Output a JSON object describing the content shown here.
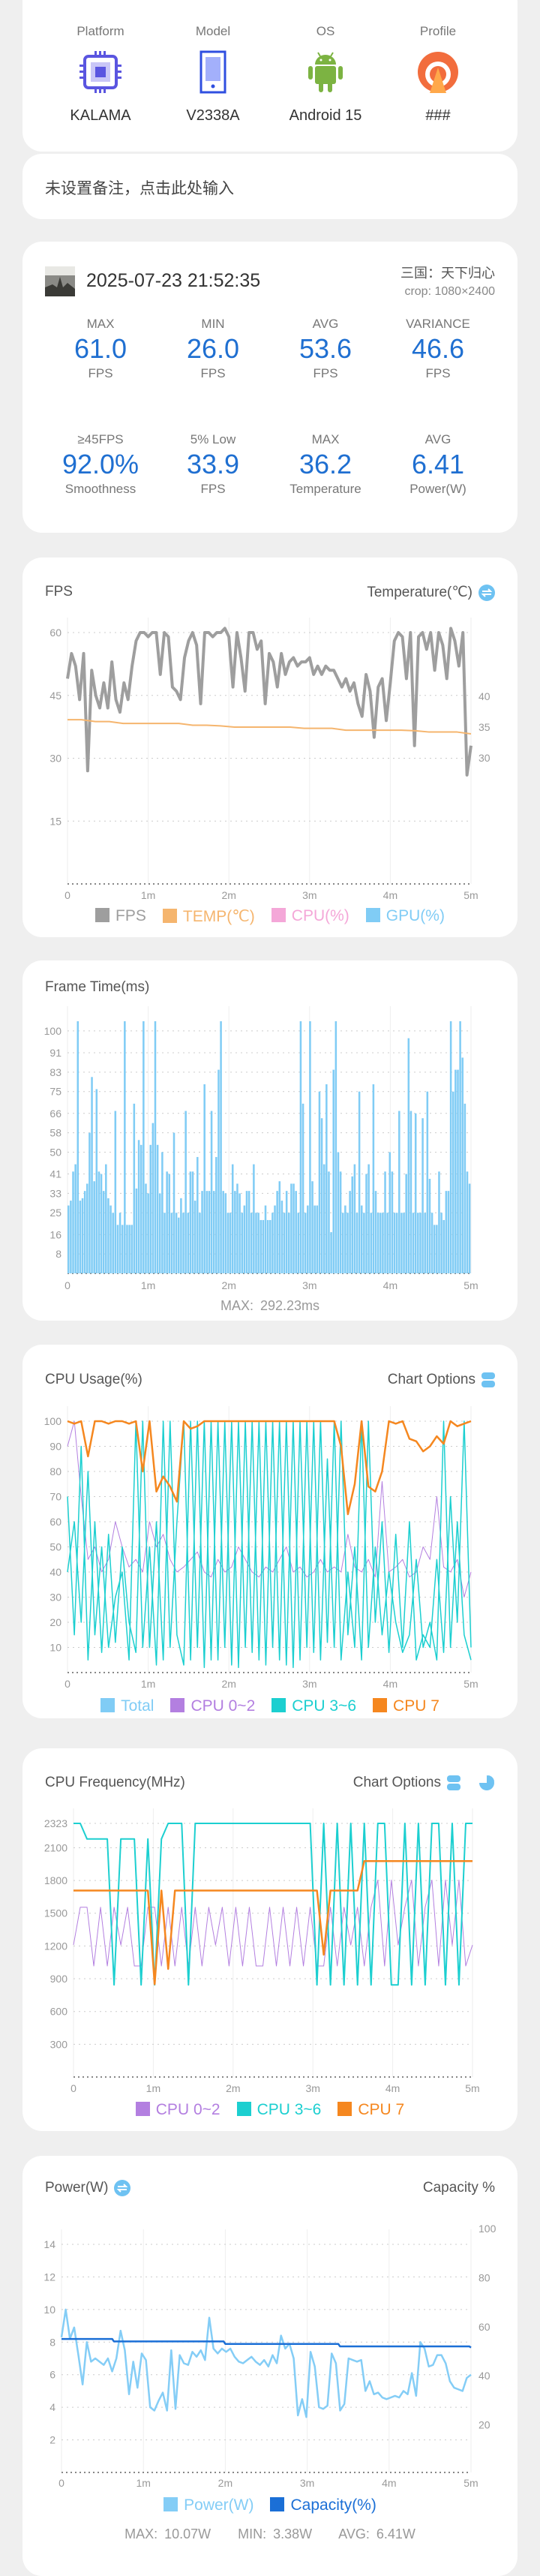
{
  "device": {
    "platform": {
      "label": "Platform",
      "value": "KALAMA",
      "icon": "chip-icon"
    },
    "model": {
      "label": "Model",
      "value": "V2338A",
      "icon": "phone-icon"
    },
    "os": {
      "label": "OS",
      "value": "Android 15",
      "icon": "android-icon"
    },
    "profile": {
      "label": "Profile",
      "value": "###",
      "icon": "profile-icon"
    }
  },
  "note": {
    "placeholder": "未设置备注，点击此处输入"
  },
  "summary": {
    "datetime": "2025-07-23 21:52:35",
    "game": "三国：天下归心",
    "crop": "crop: 1080×2400",
    "stats": [
      {
        "top": "MAX",
        "value": "61.0",
        "unit": "FPS"
      },
      {
        "top": "MIN",
        "value": "26.0",
        "unit": "FPS"
      },
      {
        "top": "AVG",
        "value": "53.6",
        "unit": "FPS"
      },
      {
        "top": "VARIANCE",
        "value": "46.6",
        "unit": "FPS"
      },
      {
        "top": "≥45FPS",
        "value": "92.0%",
        "unit": "Smoothness"
      },
      {
        "top": "5% Low",
        "value": "33.9",
        "unit": "FPS"
      },
      {
        "top": "MAX",
        "value": "36.2",
        "unit": "Temperature"
      },
      {
        "top": "AVG",
        "value": "6.41",
        "unit": "Power(W)"
      }
    ]
  },
  "colors": {
    "accent": "#1f6fd1",
    "fps": "#9e9e9e",
    "temp": "#f5b56e",
    "cpu": "#f4a7d8",
    "gpu": "#80ccf5",
    "purple": "#b37fe0",
    "cyan": "#1ccfd0",
    "orange": "#f5871f",
    "power": "#84cdf6",
    "capacity": "#1b6fd6"
  },
  "chart_data": [
    {
      "type": "line",
      "title": "FPS",
      "right_title": "Temperature(℃)",
      "xticks": [
        "0",
        "1m",
        "2m",
        "3m",
        "4m",
        "5m"
      ],
      "xlim": [
        0,
        5
      ],
      "yticks": [
        "60",
        "45",
        "30",
        "15"
      ],
      "ylim": [
        0,
        60
      ],
      "y2ticks": [
        "40",
        "35",
        "30"
      ],
      "y2lim": [
        30,
        40
      ],
      "legend": [
        "FPS",
        "TEMP(℃)",
        "CPU(%)",
        "GPU(%)"
      ],
      "series": [
        {
          "name": "FPS",
          "values": [
            49,
            55,
            52,
            44,
            55,
            27,
            51,
            45,
            42,
            48,
            42,
            53,
            44,
            41,
            48,
            44,
            52,
            58,
            60,
            60,
            59,
            60,
            60,
            50,
            60,
            59,
            47,
            46,
            44,
            54,
            58,
            60,
            57,
            43,
            60,
            60,
            59,
            60,
            60,
            61,
            59,
            47,
            60,
            54,
            46,
            60,
            60,
            56,
            58,
            43,
            55,
            53,
            47,
            55,
            50,
            53,
            54,
            52,
            53,
            53,
            54,
            50,
            52,
            50,
            52,
            51,
            51,
            49,
            47,
            49,
            46,
            48,
            43,
            40,
            50,
            46,
            35,
            47,
            49,
            39,
            48,
            58,
            60,
            59,
            49,
            60,
            33,
            59,
            60,
            56,
            60,
            51,
            60,
            57,
            49,
            61,
            58,
            52,
            60,
            26,
            33
          ]
        },
        {
          "name": "TEMP(℃)",
          "axis": "right",
          "values": [
            36.2,
            36.2,
            35.9,
            35.9,
            35.6,
            35.6,
            35.6,
            35.6,
            35.6,
            35.3,
            35.3,
            35.2,
            35.0,
            35.0,
            35.0,
            35.0,
            35.0,
            34.8,
            34.8,
            34.8,
            34.5,
            34.5,
            34.5,
            34.5,
            34.5,
            34.4,
            34.2,
            34.2,
            34.2,
            33.9
          ]
        }
      ]
    },
    {
      "type": "bar",
      "title": "Frame Time(ms)",
      "xticks": [
        "0",
        "1m",
        "2m",
        "3m",
        "4m",
        "5m"
      ],
      "xlim": [
        0,
        5
      ],
      "yticks": [
        "100",
        "91",
        "83",
        "75",
        "66",
        "58",
        "50",
        "41",
        "33",
        "25",
        "16",
        "8"
      ],
      "ylim": [
        0,
        104
      ],
      "footer": "MAX: 292.23ms",
      "values": [
        28,
        30,
        42,
        45,
        104,
        30,
        31,
        34,
        37,
        58,
        81,
        38,
        76,
        42,
        41,
        34,
        45,
        31,
        28,
        25,
        67,
        20,
        25,
        20,
        104,
        20,
        20,
        20,
        70,
        35,
        55,
        53,
        104,
        37,
        33,
        53,
        62,
        104,
        53,
        33,
        50,
        25,
        42,
        41,
        25,
        58,
        25,
        23,
        31,
        25,
        67,
        25,
        42,
        42,
        30,
        48,
        25,
        34,
        78,
        34,
        34,
        67,
        34,
        48,
        84,
        104,
        34,
        33,
        25,
        25,
        45,
        34,
        37,
        33,
        25,
        28,
        34,
        34,
        25,
        45,
        25,
        25,
        22,
        22,
        28,
        22,
        22,
        25,
        28,
        34,
        38,
        30,
        25,
        34,
        25,
        37,
        37,
        34,
        25,
        104,
        70,
        25,
        28,
        104,
        38,
        28,
        28,
        75,
        64,
        45,
        78,
        42,
        17,
        84,
        104,
        50,
        42,
        25,
        28,
        25,
        34,
        40,
        45,
        25,
        75,
        28,
        25,
        41,
        45,
        25,
        78,
        34,
        25,
        25,
        25,
        42,
        25,
        50,
        42,
        25,
        25,
        67,
        25,
        25,
        41,
        97,
        67,
        25,
        66,
        25,
        25,
        64,
        25,
        75,
        39,
        25,
        20,
        20,
        42,
        25,
        22,
        34,
        34,
        104,
        75,
        84,
        84,
        104,
        89,
        70,
        42,
        37
      ]
    },
    {
      "type": "line",
      "title": "CPU Usage(%)",
      "right_title": "Chart Options",
      "xticks": [
        "0",
        "1m",
        "2m",
        "3m",
        "4m",
        "5m"
      ],
      "xlim": [
        0,
        5
      ],
      "yticks": [
        "100",
        "90",
        "80",
        "70",
        "60",
        "50",
        "40",
        "30",
        "20",
        "10"
      ],
      "ylim": [
        0,
        100
      ],
      "legend": [
        "Total",
        "CPU 0~2",
        "CPU 3~6",
        "CPU 7"
      ],
      "series": [
        {
          "name": "CPU 0~2",
          "values": [
            90,
            100,
            70,
            45,
            50,
            40,
            45,
            60,
            50,
            42,
            45,
            40,
            60,
            50,
            55,
            45,
            40,
            42,
            45,
            48,
            40,
            38,
            45,
            40,
            42,
            50,
            45,
            40,
            38,
            42,
            40,
            45,
            50,
            40,
            42,
            38,
            40,
            45,
            40,
            42,
            40,
            55,
            42,
            40,
            45,
            38,
            76,
            40,
            42,
            45,
            38,
            40,
            50,
            45,
            70,
            42,
            40,
            45,
            30,
            40
          ]
        },
        {
          "name": "CPU 3~6",
          "values": [
            70,
            15,
            90,
            5,
            60,
            8,
            55,
            12,
            50,
            20,
            8,
            100,
            10,
            60,
            5,
            100,
            15,
            3,
            100,
            10,
            100,
            5,
            100,
            10,
            100,
            2,
            100,
            8,
            100,
            3,
            100,
            5,
            100,
            2,
            100,
            10,
            100,
            5,
            85,
            10,
            100,
            15,
            50,
            5,
            100,
            20,
            60,
            8,
            55,
            10,
            60,
            5,
            15,
            10,
            45,
            8,
            70,
            20,
            100,
            10
          ]
        },
        {
          "name": "CPU 3~6",
          "values": [
            40,
            60,
            20,
            80,
            15,
            50,
            10,
            30,
            40,
            5,
            100,
            10,
            50,
            3,
            100,
            10,
            60,
            100,
            5,
            100,
            2,
            100,
            5,
            100,
            3,
            100,
            10,
            100,
            5,
            100,
            10,
            100,
            3,
            100,
            5,
            100,
            8,
            100,
            12,
            100,
            5,
            40,
            10,
            100,
            10,
            50,
            15,
            40,
            20,
            8,
            15,
            45,
            10,
            20,
            5,
            100,
            10,
            60,
            15,
            5
          ]
        },
        {
          "name": "CPU 7",
          "values": [
            100,
            99,
            100,
            86,
            100,
            100,
            99,
            100,
            100,
            99,
            100,
            80,
            100,
            72,
            78,
            74,
            68,
            100,
            97,
            98,
            100,
            100,
            100,
            100,
            100,
            100,
            100,
            100,
            100,
            100,
            100,
            100,
            100,
            100,
            100,
            100,
            100,
            100,
            100,
            100,
            90,
            63,
            75,
            100,
            74,
            72,
            80,
            100,
            99,
            100,
            93,
            92,
            88,
            90,
            94,
            91,
            100,
            98,
            99,
            100
          ]
        }
      ]
    },
    {
      "type": "line",
      "title": "CPU Frequency(MHz)",
      "right_title": "Chart Options",
      "xticks": [
        "0",
        "1m",
        "2m",
        "3m",
        "4m",
        "5m"
      ],
      "xlim": [
        0,
        5
      ],
      "yticks": [
        "2323",
        "2100",
        "1800",
        "1500",
        "1200",
        "900",
        "600",
        "300"
      ],
      "ylim": [
        0,
        2323
      ],
      "legend": [
        "CPU 0~2",
        "CPU 3~6",
        "CPU 7"
      ],
      "series": [
        {
          "name": "CPU 0~2",
          "values": [
            1209,
            1555,
            1555,
            1017,
            1555,
            1017,
            1555,
            1209,
            1555,
            1017,
            1017,
            1555,
            1555,
            1017,
            1555,
            1017,
            1555,
            1017,
            1555,
            1017,
            1555,
            1209,
            1555,
            1017,
            1555,
            1017,
            1555,
            1017,
            1017,
            1555,
            1017,
            1555,
            1017,
            1555,
            1017,
            1555,
            1017,
            1017,
            1555,
            1017,
            1555,
            1209,
            1555,
            1017,
            1555,
            1804,
            1017,
            1804,
            1209,
            1555,
            1804,
            1017,
            1555,
            1804,
            1017,
            1804,
            1209,
            1804,
            1017,
            1209
          ]
        },
        {
          "name": "CPU 3~6",
          "values": [
            2323,
            2323,
            2180,
            2180,
            2180,
            2180,
            844,
            2180,
            2180,
            2180,
            844,
            2180,
            844,
            2180,
            2323,
            2323,
            2323,
            844,
            2323,
            2323,
            2323,
            2323,
            2323,
            2323,
            2323,
            2323,
            2323,
            2323,
            2323,
            2323,
            2323,
            2323,
            2323,
            2323,
            2323,
            2323,
            844,
            2323,
            844,
            2323,
            844,
            2323,
            844,
            2323,
            844,
            2323,
            2323,
            844,
            844,
            2323,
            844,
            2323,
            844,
            2323,
            2323,
            844,
            2323,
            844,
            2323,
            2323
          ]
        },
        {
          "name": "CPU 7",
          "values": [
            1708,
            1708,
            1708,
            1708,
            1708,
            1708,
            1708,
            1708,
            1708,
            1708,
            1708,
            1708,
            850,
            1708,
            990,
            1708,
            1708,
            1708,
            1708,
            1708,
            1708,
            1708,
            1708,
            1708,
            1708,
            1708,
            1708,
            1708,
            1708,
            1708,
            1708,
            1708,
            1708,
            1708,
            1708,
            1708,
            1708,
            1120,
            1708,
            1708,
            1708,
            1708,
            1708,
            1978,
            1978,
            1978,
            1978,
            1978,
            1978,
            1978,
            1978,
            1978,
            1978,
            1978,
            1978,
            1978,
            1978,
            1978,
            1978,
            1978
          ]
        }
      ]
    },
    {
      "type": "line",
      "title": "Power(W)",
      "right_title": "Capacity %",
      "xticks": [
        "0",
        "1m",
        "2m",
        "3m",
        "4m",
        "5m"
      ],
      "xlim": [
        0,
        5
      ],
      "yticks": [
        "14",
        "12",
        "10",
        "8",
        "6",
        "4",
        "2"
      ],
      "ylim": [
        0,
        14
      ],
      "y2ticks": [
        "100",
        "80",
        "60",
        "40",
        "20"
      ],
      "y2lim": [
        0,
        100
      ],
      "legend": [
        "Power(W)",
        "Capacity(%)"
      ],
      "footer": "MAX: 10.07W    MIN: 3.38W    AVG: 6.41W",
      "series": [
        {
          "name": "Power(W)",
          "values": [
            8.3,
            10.0,
            8.2,
            8.9,
            7.2,
            5.4,
            8.0,
            6.8,
            7.0,
            6.8,
            6.6,
            7.0,
            6.2,
            7.0,
            8.7,
            7.5,
            4.8,
            6.8,
            5.2,
            7.3,
            6.9,
            4.0,
            3.8,
            4.4,
            4.9,
            3.8,
            7.5,
            3.9,
            7.2,
            6.7,
            6.6,
            7.4,
            7.1,
            7.5,
            6.9,
            9.5,
            7.6,
            7.3,
            7.6,
            7.4,
            7.6,
            7.1,
            6.8,
            6.7,
            6.9,
            7.1,
            6.8,
            6.6,
            6.9,
            6.5,
            7.2,
            6.7,
            8.4,
            7.6,
            7.9,
            7.0,
            3.5,
            4.5,
            3.4,
            7.4,
            6.5,
            4.0,
            3.9,
            4.1,
            7.3,
            6.7,
            3.8,
            4.2,
            7.0,
            6.9,
            6.8,
            6.9,
            5.0,
            5.6,
            4.8,
            4.9,
            4.6,
            4.5,
            4.6,
            4.7,
            4.6,
            5.0,
            4.8,
            6.1,
            4.7,
            8.0,
            7.6,
            6.5,
            6.6,
            7.2,
            7.2,
            6.7,
            5.6,
            5.2,
            5.1,
            5.0,
            5.8,
            6.0
          ]
        },
        {
          "name": "Capacity(%)",
          "axis": "right",
          "points": [
            [
              0,
              55
            ],
            [
              0.62,
              55
            ],
            [
              0.64,
              54
            ],
            [
              1.98,
              54
            ],
            [
              2.0,
              53
            ],
            [
              3.38,
              53
            ],
            [
              3.4,
              52
            ],
            [
              4.98,
              52
            ],
            [
              5,
              51.5
            ]
          ]
        }
      ]
    }
  ]
}
